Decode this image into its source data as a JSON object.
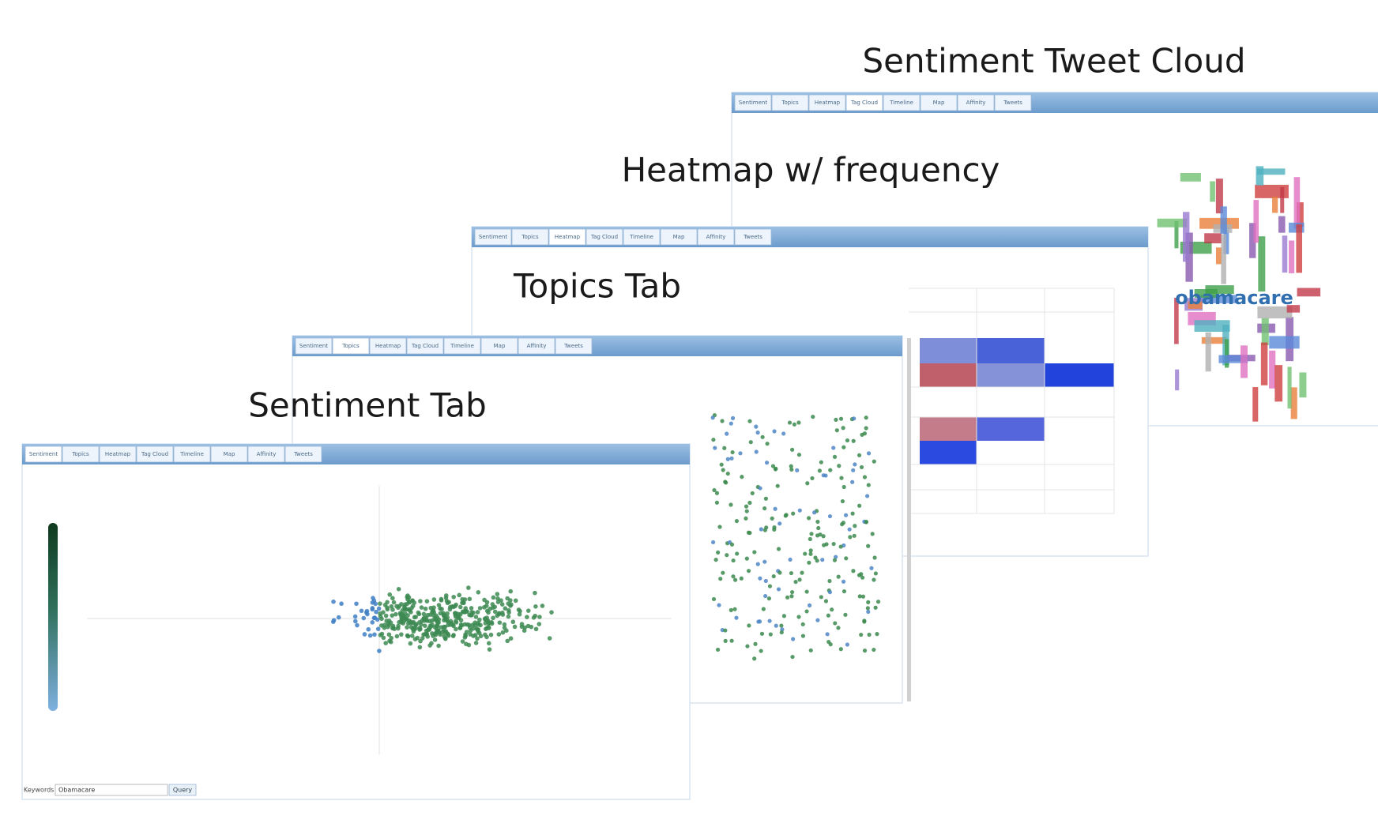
{
  "panels": [
    {
      "title": "Sentiment Tweet Cloud"
    },
    {
      "title": "Heatmap w/ frequency"
    },
    {
      "title": "Topics Tab"
    },
    {
      "title": "Sentiment Tab"
    }
  ],
  "tabs": [
    "Sentiment",
    "Topics",
    "Heatmap",
    "Tag Cloud",
    "Timeline",
    "Map",
    "Affinity",
    "Tweets"
  ],
  "tag_cloud": {
    "word": "obamacare"
  },
  "search": {
    "label": "Keywords",
    "value": "Obamacare",
    "button": "Query"
  }
}
